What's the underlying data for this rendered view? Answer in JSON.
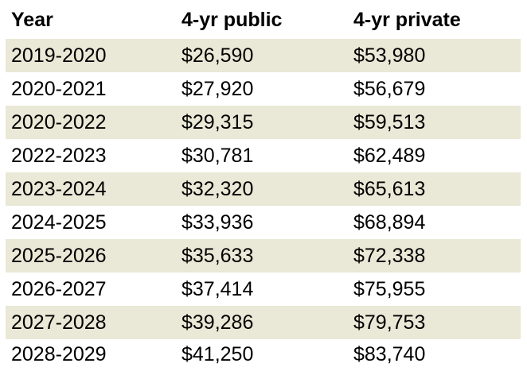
{
  "table": {
    "headers": [
      "Year",
      "4-yr public",
      "4-yr private"
    ],
    "rows": [
      [
        "2019-2020",
        "$26,590",
        "$53,980"
      ],
      [
        "2020-2021",
        "$27,920",
        "$56,679"
      ],
      [
        "2020-2022",
        "$29,315",
        "$59,513"
      ],
      [
        "2022-2023",
        "$30,781",
        "$62,489"
      ],
      [
        "2023-2024",
        "$32,320",
        "$65,613"
      ],
      [
        "2024-2025",
        "$33,936",
        "$68,894"
      ],
      [
        "2025-2026",
        "$35,633",
        "$72,338"
      ],
      [
        "2026-2027",
        "$37,414",
        "$75,955"
      ],
      [
        "2027-2028",
        "$39,286",
        "$79,753"
      ],
      [
        "2028-2029",
        "$41,250",
        "$83,740"
      ]
    ],
    "row_shading_color": "#eae8d6"
  }
}
